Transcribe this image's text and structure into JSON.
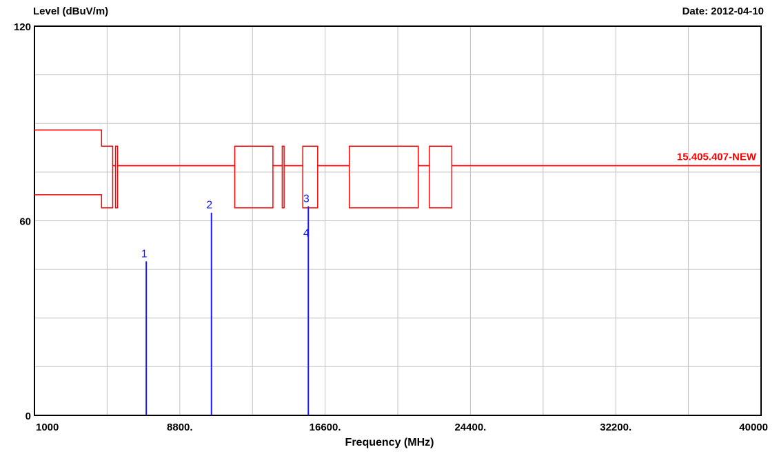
{
  "chart_data": {
    "type": "line",
    "ylabel": "Level (dBuV/m)",
    "xlabel": "Frequency (MHz)",
    "date_text": "Date: 2012-04-10",
    "xlim": [
      1000,
      40000
    ],
    "ylim": [
      0,
      120
    ],
    "x_tick_labels": [
      "1000",
      "8800.",
      "16600.",
      "24400.",
      "32200.",
      "40000"
    ],
    "x_tick_values": [
      1000,
      8800,
      16600,
      24400,
      32200,
      40000
    ],
    "y_tick_labels": [
      "120",
      "60",
      "0"
    ],
    "y_tick_values": [
      120,
      60,
      0
    ],
    "grid": true,
    "limit_label": "15.405.407-NEW",
    "colors": {
      "limit": "#ff0000",
      "markers": "#1a1aff",
      "grid": "#c0c0c0"
    },
    "limit_lines": [
      {
        "x": [
          1000,
          4600,
          4600,
          5200,
          5200,
          5350,
          5350,
          5460,
          5460,
          11750,
          11750,
          13800,
          13800,
          14300,
          14300,
          14400,
          14400,
          15400,
          15400,
          16200,
          16200,
          17900,
          17900,
          21600,
          21600,
          22200,
          22200,
          23400,
          23400,
          40000
        ],
        "y": [
          88,
          88,
          83,
          83,
          77,
          77,
          83,
          83,
          77,
          77,
          83,
          83,
          77,
          77,
          83,
          83,
          77,
          77,
          83,
          83,
          77,
          77,
          83,
          83,
          77,
          77,
          83,
          83,
          77,
          77
        ]
      },
      {
        "x": [
          1000,
          4600,
          4600,
          5200,
          5200,
          5350,
          5350,
          5460,
          5460,
          11750,
          11750,
          13800,
          13800,
          14300,
          14300,
          14400,
          14400,
          15400,
          15400,
          16200,
          16200,
          17900,
          17900,
          21600,
          21600,
          22200,
          22200,
          23400,
          23400,
          40000
        ],
        "y": [
          68,
          68,
          64,
          64,
          77,
          77,
          64,
          64,
          77,
          77,
          64,
          64,
          77,
          77,
          64,
          64,
          77,
          77,
          64,
          64,
          77,
          77,
          64,
          64,
          77,
          77,
          64,
          64,
          77,
          77
        ]
      }
    ],
    "markers": [
      {
        "label": "1",
        "x": 7000,
        "y": 47.5
      },
      {
        "label": "2",
        "x": 10500,
        "y": 62.5
      },
      {
        "label": "3",
        "x": 15700,
        "y": 64.5
      },
      {
        "label": "4",
        "x": 15700,
        "y": 64.5
      }
    ]
  }
}
